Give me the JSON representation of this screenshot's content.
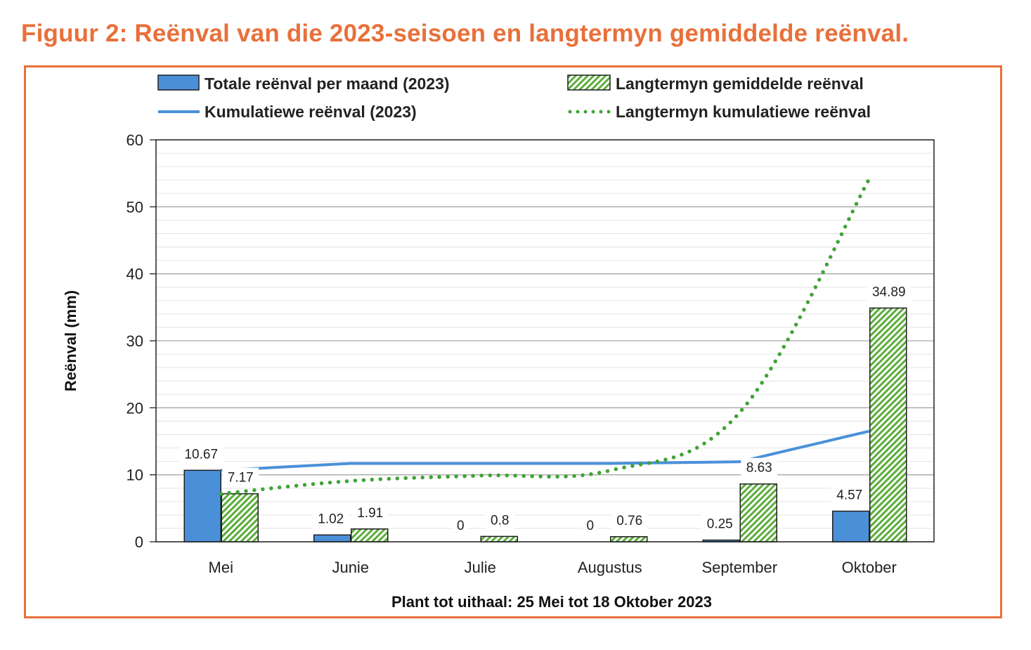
{
  "figure_title": "Figuur 2: Reënval van die 2023-seisoen en langtermyn gemiddelde reënval.",
  "colors": {
    "title": "#E8703A",
    "frame": "#E8703A",
    "bar_2023": "#4A90D9",
    "bar_longterm": "#5BAD3A",
    "line_2023": "#4A90D9",
    "line_longterm": "#3FA335"
  },
  "chart_data": {
    "type": "bar",
    "title": "",
    "xlabel": "Plant tot uithaal: 25 Mei tot 18 Oktober 2023",
    "ylabel": "Reënval (mm)",
    "ylim": [
      0,
      60
    ],
    "yticks": [
      0,
      10,
      20,
      30,
      40,
      50,
      60
    ],
    "categories": [
      "Mei",
      "Junie",
      "Julie",
      "Augustus",
      "September",
      "Oktober"
    ],
    "series": [
      {
        "name": "Totale reënval per maand (2023)",
        "kind": "bar",
        "values": [
          10.67,
          1.02,
          0,
          0,
          0.25,
          4.57
        ],
        "labels": [
          "10.67",
          "1.02",
          "0",
          "0",
          "0.25",
          "4.57"
        ]
      },
      {
        "name": "Langtermyn gemiddelde reënval",
        "kind": "bar-hatched",
        "values": [
          7.17,
          1.91,
          0.8,
          0.76,
          8.63,
          34.89
        ],
        "labels": [
          "7.17",
          "1.91",
          "0.8",
          "0.76",
          "8.63",
          "34.89"
        ]
      },
      {
        "name": "Kumulatiewe reënval (2023)",
        "kind": "line",
        "values": [
          10.67,
          11.69,
          11.69,
          11.69,
          11.94,
          16.51
        ]
      },
      {
        "name": "Langtermyn kumulatiewe reënval",
        "kind": "dotted-line",
        "values": [
          7.17,
          9.08,
          9.88,
          10.64,
          19.27,
          54.16
        ]
      }
    ],
    "legend": [
      "Totale reënval per maand (2023)",
      "Langtermyn gemiddelde reënval",
      "Kumulatiewe reënval (2023)",
      "Langtermyn kumulatiewe reënval"
    ],
    "legend_position": "top",
    "grid": true
  }
}
